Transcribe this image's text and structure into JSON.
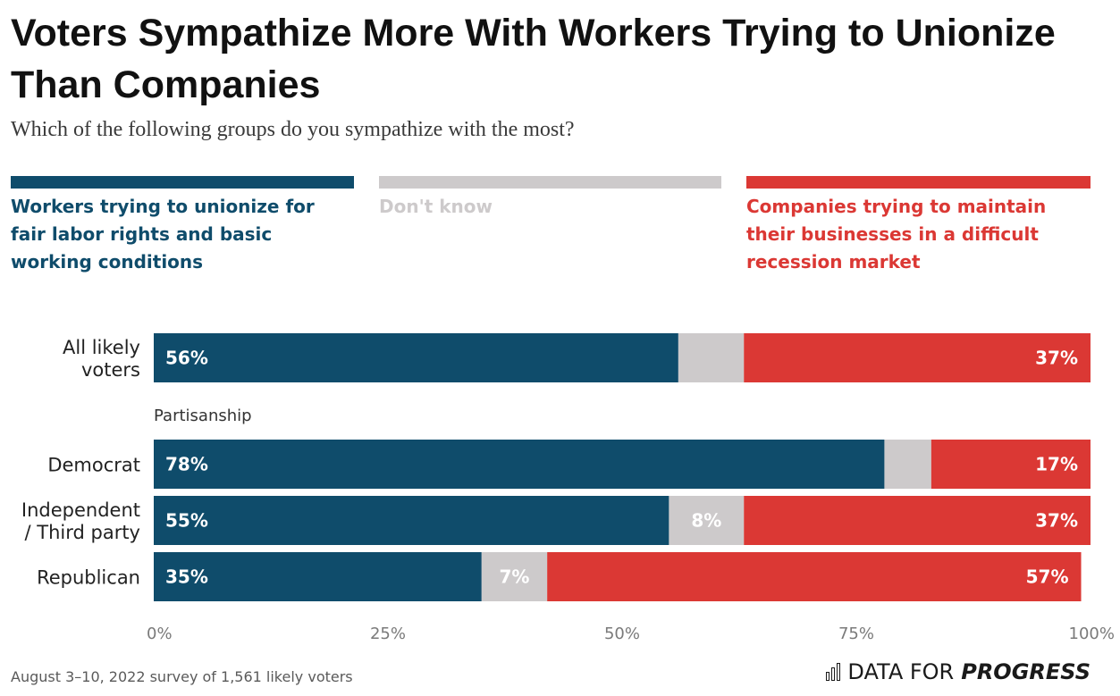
{
  "title": "Voters Sympathize More With Workers Trying to Unionize Than Companies",
  "subtitle": "Which of the following groups do you sympathize with the most?",
  "colors": {
    "workers": "#0f4c6b",
    "dont_know": "#cdcacb",
    "companies": "#db3834"
  },
  "legend": {
    "workers": "Workers trying to unionize for fair labor rights and basic working conditions",
    "dont_know": "Don't know",
    "companies": "Companies trying to maintain their businesses in a difficult recession market"
  },
  "footer": {
    "note": "August 3–10, 2022 survey of 1,561 likely voters",
    "brand_plain": "DATA FOR",
    "brand_strong": "PROGRESS"
  },
  "chart_data": {
    "type": "bar",
    "orientation": "horizontal",
    "stacked": true,
    "xlim": [
      0,
      100
    ],
    "xticks": [
      "0%",
      "25%",
      "50%",
      "75%",
      "100%"
    ],
    "categories": [
      "All likely voters",
      "Democrat",
      "Independent / Third party",
      "Republican"
    ],
    "group_label": "Partisanship",
    "series": [
      {
        "name": "Workers trying to unionize for fair labor rights and basic working conditions",
        "values": [
          56,
          78,
          55,
          35
        ],
        "labels": [
          "56%",
          "78%",
          "55%",
          "35%"
        ]
      },
      {
        "name": "Don't know",
        "values": [
          7,
          5,
          8,
          7
        ],
        "labels": [
          "",
          "",
          "8%",
          "7%"
        ]
      },
      {
        "name": "Companies trying to maintain their businesses in a difficult recession market",
        "values": [
          37,
          17,
          37,
          57
        ],
        "labels": [
          "37%",
          "17%",
          "37%",
          "57%"
        ]
      }
    ]
  }
}
